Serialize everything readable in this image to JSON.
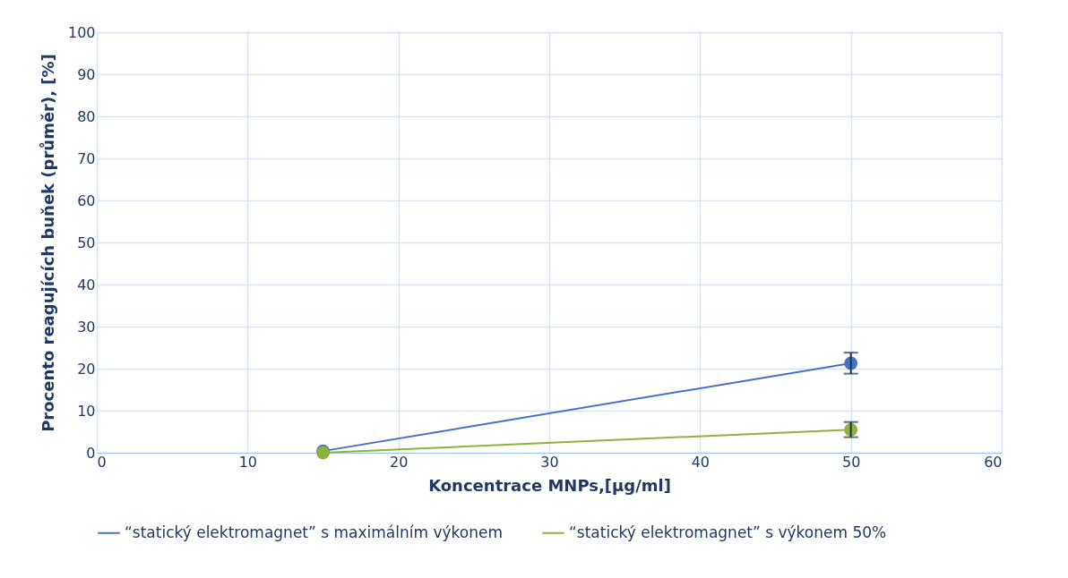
{
  "chart_data": {
    "type": "line",
    "xlabel": "Koncentrace MNPs,[µg/ml]",
    "ylabel": "Procento reagujících buňek (průměr), [%]",
    "x": [
      15,
      50
    ],
    "series": [
      {
        "name": "“statický elektromagnet” s maximálním výkonem",
        "color": "#4472c4",
        "values": [
          0.4,
          21.3
        ],
        "errors": [
          null,
          2.5
        ]
      },
      {
        "name": "“statický elektromagnet” s výkonem 50%",
        "color": "#8db33a",
        "values": [
          0,
          5.5
        ],
        "errors": [
          null,
          1.8
        ]
      }
    ],
    "xlim": [
      0,
      60
    ],
    "xticks": [
      0,
      10,
      20,
      30,
      40,
      50,
      60
    ],
    "ylim": [
      0,
      100
    ],
    "yticks": [
      0,
      10,
      20,
      30,
      40,
      50,
      60,
      70,
      80,
      90,
      100
    ],
    "grid": true,
    "legend": "bottom",
    "marker": "circle",
    "line_style": "solid"
  }
}
